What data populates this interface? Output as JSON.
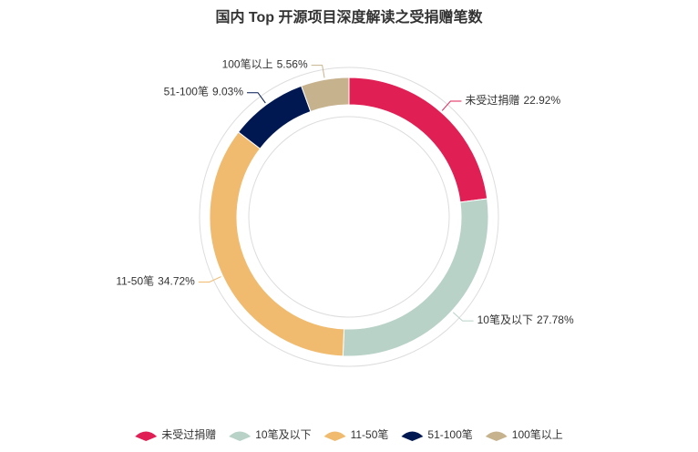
{
  "chart_data": {
    "type": "donut",
    "title": "国内 Top 开源项目深度解读之受捐赠笔数",
    "categories": [
      "未受过捐赠",
      "10笔及以下",
      "11-50笔",
      "51-100笔",
      "100笔以上"
    ],
    "values": [
      22.92,
      27.78,
      34.72,
      9.03,
      5.56
    ],
    "value_labels": [
      "22.92%",
      "27.78%",
      "34.72%",
      "9.03%",
      "5.56%"
    ],
    "colors": [
      "#e01f54",
      "#b8d2c7",
      "#f0bb6e",
      "#001852",
      "#c6b38e"
    ]
  }
}
